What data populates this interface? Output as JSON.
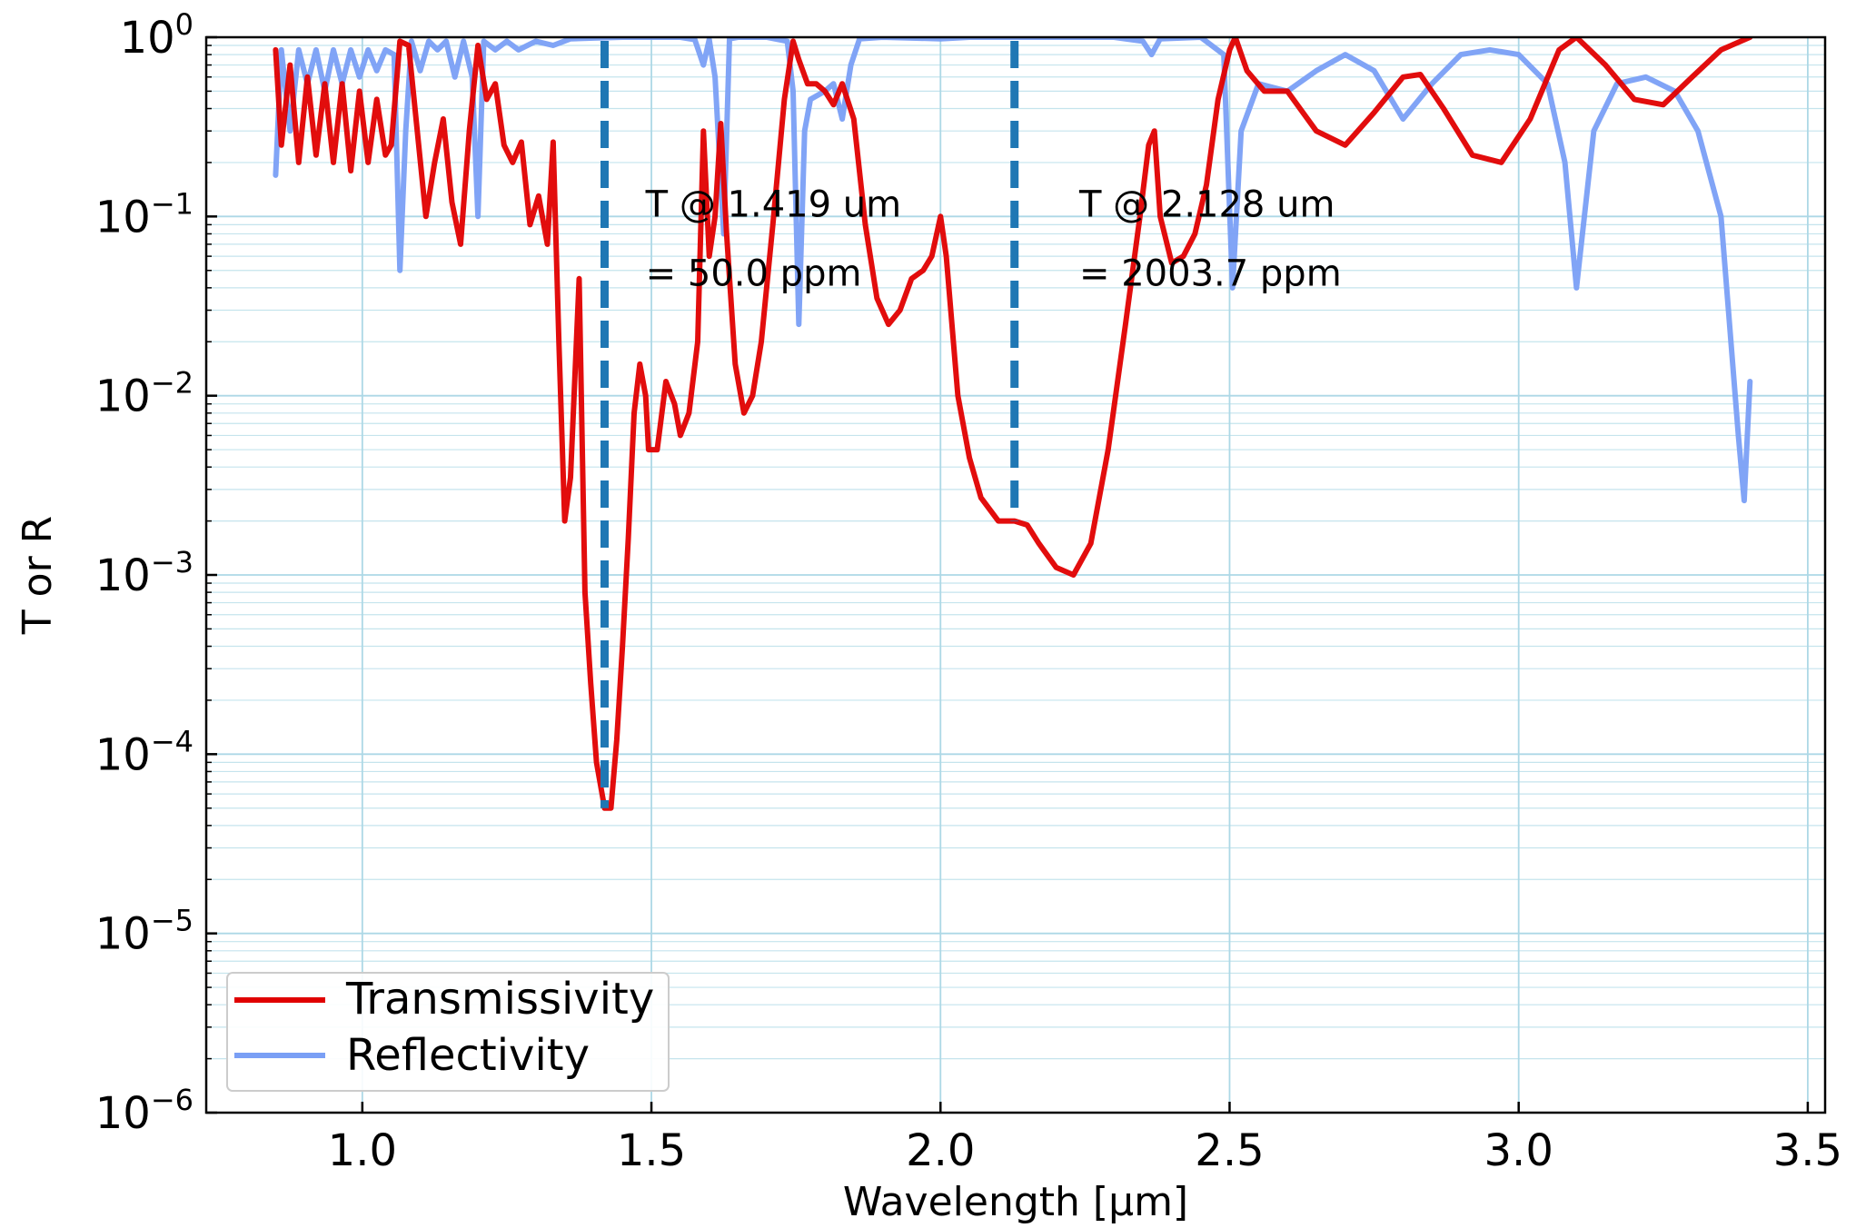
{
  "chart_data": {
    "type": "line",
    "title": "",
    "xlabel": "Wavelength [μm]",
    "ylabel": "T or R",
    "xlim": [
      0.73,
      3.53
    ],
    "ylim": [
      1e-06,
      1
    ],
    "yscale": "log",
    "xticks": [
      1.0,
      1.5,
      2.0,
      2.5,
      3.0,
      3.5
    ],
    "xtick_labels": [
      "1.0",
      "1.5",
      "2.0",
      "2.5",
      "3.0",
      "3.5"
    ],
    "yticks": [
      {
        "value": 1,
        "base": "10",
        "exp": "0"
      },
      {
        "value": 0.1,
        "base": "10",
        "exp": "−1"
      },
      {
        "value": 0.01,
        "base": "10",
        "exp": "−2"
      },
      {
        "value": 0.001,
        "base": "10",
        "exp": "−3"
      },
      {
        "value": 0.0001,
        "base": "10",
        "exp": "−4"
      },
      {
        "value": 1e-05,
        "base": "10",
        "exp": "−5"
      },
      {
        "value": 1e-06,
        "base": "10",
        "exp": "−6"
      }
    ],
    "grid": true,
    "legend_position": "lower-left",
    "series": [
      {
        "name": "Transmissivity",
        "color": "#e00000",
        "points": [
          [
            0.85,
            0.85
          ],
          [
            0.86,
            0.25
          ],
          [
            0.875,
            0.7
          ],
          [
            0.89,
            0.2
          ],
          [
            0.905,
            0.6
          ],
          [
            0.92,
            0.22
          ],
          [
            0.935,
            0.55
          ],
          [
            0.95,
            0.2
          ],
          [
            0.965,
            0.55
          ],
          [
            0.98,
            0.18
          ],
          [
            0.995,
            0.5
          ],
          [
            1.01,
            0.2
          ],
          [
            1.025,
            0.45
          ],
          [
            1.04,
            0.22
          ],
          [
            1.05,
            0.25
          ],
          [
            1.065,
            0.95
          ],
          [
            1.08,
            0.9
          ],
          [
            1.095,
            0.3
          ],
          [
            1.11,
            0.1
          ],
          [
            1.125,
            0.2
          ],
          [
            1.14,
            0.35
          ],
          [
            1.155,
            0.12
          ],
          [
            1.17,
            0.07
          ],
          [
            1.185,
            0.3
          ],
          [
            1.2,
            0.9
          ],
          [
            1.215,
            0.45
          ],
          [
            1.23,
            0.55
          ],
          [
            1.245,
            0.25
          ],
          [
            1.26,
            0.2
          ],
          [
            1.275,
            0.26
          ],
          [
            1.29,
            0.09
          ],
          [
            1.305,
            0.13
          ],
          [
            1.32,
            0.07
          ],
          [
            1.33,
            0.26
          ],
          [
            1.34,
            0.02
          ],
          [
            1.35,
            0.002
          ],
          [
            1.36,
            0.0035
          ],
          [
            1.375,
            0.045
          ],
          [
            1.385,
            0.0008
          ],
          [
            1.395,
            0.00025
          ],
          [
            1.405,
            9e-05
          ],
          [
            1.419,
            5e-05
          ],
          [
            1.43,
            5e-05
          ],
          [
            1.44,
            0.00012
          ],
          [
            1.45,
            0.0004
          ],
          [
            1.46,
            0.0016
          ],
          [
            1.47,
            0.008
          ],
          [
            1.48,
            0.015
          ],
          [
            1.49,
            0.01
          ],
          [
            1.495,
            0.005
          ],
          [
            1.51,
            0.005
          ],
          [
            1.525,
            0.012
          ],
          [
            1.54,
            0.009
          ],
          [
            1.55,
            0.006
          ],
          [
            1.565,
            0.008
          ],
          [
            1.58,
            0.02
          ],
          [
            1.59,
            0.3
          ],
          [
            1.6,
            0.06
          ],
          [
            1.61,
            0.1
          ],
          [
            1.62,
            0.33
          ],
          [
            1.63,
            0.08
          ],
          [
            1.645,
            0.015
          ],
          [
            1.66,
            0.008
          ],
          [
            1.675,
            0.01
          ],
          [
            1.69,
            0.02
          ],
          [
            1.71,
            0.09
          ],
          [
            1.73,
            0.45
          ],
          [
            1.745,
            0.95
          ],
          [
            1.755,
            0.75
          ],
          [
            1.77,
            0.55
          ],
          [
            1.785,
            0.55
          ],
          [
            1.8,
            0.5
          ],
          [
            1.815,
            0.42
          ],
          [
            1.83,
            0.55
          ],
          [
            1.85,
            0.35
          ],
          [
            1.87,
            0.09
          ],
          [
            1.89,
            0.035
          ],
          [
            1.91,
            0.025
          ],
          [
            1.93,
            0.03
          ],
          [
            1.95,
            0.045
          ],
          [
            1.97,
            0.05
          ],
          [
            1.985,
            0.06
          ],
          [
            2.0,
            0.1
          ],
          [
            2.01,
            0.06
          ],
          [
            2.03,
            0.01
          ],
          [
            2.05,
            0.0045
          ],
          [
            2.07,
            0.0027
          ],
          [
            2.1,
            0.002
          ],
          [
            2.128,
            0.002
          ],
          [
            2.15,
            0.0019
          ],
          [
            2.17,
            0.0015
          ],
          [
            2.2,
            0.0011
          ],
          [
            2.23,
            0.001
          ],
          [
            2.26,
            0.0015
          ],
          [
            2.29,
            0.005
          ],
          [
            2.32,
            0.025
          ],
          [
            2.345,
            0.1
          ],
          [
            2.36,
            0.25
          ],
          [
            2.37,
            0.3
          ],
          [
            2.38,
            0.1
          ],
          [
            2.4,
            0.055
          ],
          [
            2.42,
            0.06
          ],
          [
            2.44,
            0.08
          ],
          [
            2.46,
            0.15
          ],
          [
            2.48,
            0.45
          ],
          [
            2.5,
            0.85
          ],
          [
            2.51,
            1.0
          ],
          [
            2.53,
            0.65
          ],
          [
            2.56,
            0.5
          ],
          [
            2.6,
            0.5
          ],
          [
            2.65,
            0.3
          ],
          [
            2.7,
            0.25
          ],
          [
            2.75,
            0.38
          ],
          [
            2.8,
            0.6
          ],
          [
            2.83,
            0.62
          ],
          [
            2.87,
            0.4
          ],
          [
            2.92,
            0.22
          ],
          [
            2.97,
            0.2
          ],
          [
            3.02,
            0.35
          ],
          [
            3.07,
            0.85
          ],
          [
            3.1,
            1.0
          ],
          [
            3.15,
            0.7
          ],
          [
            3.2,
            0.45
          ],
          [
            3.25,
            0.42
          ],
          [
            3.3,
            0.6
          ],
          [
            3.35,
            0.85
          ],
          [
            3.4,
            1.0
          ]
        ]
      },
      {
        "name": "Reflectivity",
        "color": "#7a9ff5",
        "points": [
          [
            0.85,
            0.17
          ],
          [
            0.86,
            0.85
          ],
          [
            0.875,
            0.3
          ],
          [
            0.89,
            0.85
          ],
          [
            0.905,
            0.55
          ],
          [
            0.92,
            0.85
          ],
          [
            0.935,
            0.5
          ],
          [
            0.95,
            0.85
          ],
          [
            0.965,
            0.55
          ],
          [
            0.98,
            0.85
          ],
          [
            0.995,
            0.6
          ],
          [
            1.01,
            0.85
          ],
          [
            1.025,
            0.65
          ],
          [
            1.04,
            0.85
          ],
          [
            1.055,
            0.8
          ],
          [
            1.065,
            0.05
          ],
          [
            1.075,
            0.3
          ],
          [
            1.085,
            0.95
          ],
          [
            1.1,
            0.65
          ],
          [
            1.115,
            0.95
          ],
          [
            1.13,
            0.85
          ],
          [
            1.145,
            0.95
          ],
          [
            1.16,
            0.6
          ],
          [
            1.175,
            0.95
          ],
          [
            1.19,
            0.6
          ],
          [
            1.2,
            0.1
          ],
          [
            1.21,
            0.95
          ],
          [
            1.23,
            0.85
          ],
          [
            1.25,
            0.95
          ],
          [
            1.27,
            0.85
          ],
          [
            1.3,
            0.95
          ],
          [
            1.33,
            0.9
          ],
          [
            1.36,
            0.98
          ],
          [
            1.4,
            0.99
          ],
          [
            1.45,
            1.0
          ],
          [
            1.5,
            1.0
          ],
          [
            1.55,
            1.0
          ],
          [
            1.575,
            0.97
          ],
          [
            1.59,
            0.7
          ],
          [
            1.6,
            0.97
          ],
          [
            1.61,
            0.6
          ],
          [
            1.625,
            0.08
          ],
          [
            1.635,
            0.98
          ],
          [
            1.65,
            1.0
          ],
          [
            1.7,
            1.0
          ],
          [
            1.735,
            0.95
          ],
          [
            1.745,
            0.5
          ],
          [
            1.755,
            0.025
          ],
          [
            1.765,
            0.3
          ],
          [
            1.775,
            0.45
          ],
          [
            1.8,
            0.5
          ],
          [
            1.815,
            0.55
          ],
          [
            1.83,
            0.35
          ],
          [
            1.845,
            0.7
          ],
          [
            1.86,
            0.98
          ],
          [
            1.9,
            1.0
          ],
          [
            2.0,
            0.98
          ],
          [
            2.05,
            1.0
          ],
          [
            2.15,
            1.0
          ],
          [
            2.3,
            1.0
          ],
          [
            2.35,
            0.95
          ],
          [
            2.365,
            0.8
          ],
          [
            2.38,
            0.98
          ],
          [
            2.45,
            1.0
          ],
          [
            2.49,
            0.8
          ],
          [
            2.505,
            0.04
          ],
          [
            2.52,
            0.3
          ],
          [
            2.55,
            0.55
          ],
          [
            2.6,
            0.5
          ],
          [
            2.65,
            0.65
          ],
          [
            2.7,
            0.8
          ],
          [
            2.75,
            0.65
          ],
          [
            2.8,
            0.35
          ],
          [
            2.85,
            0.55
          ],
          [
            2.9,
            0.8
          ],
          [
            2.95,
            0.85
          ],
          [
            3.0,
            0.8
          ],
          [
            3.05,
            0.55
          ],
          [
            3.08,
            0.2
          ],
          [
            3.1,
            0.04
          ],
          [
            3.13,
            0.3
          ],
          [
            3.17,
            0.55
          ],
          [
            3.22,
            0.6
          ],
          [
            3.27,
            0.5
          ],
          [
            3.31,
            0.3
          ],
          [
            3.35,
            0.1
          ],
          [
            3.38,
            0.006
          ],
          [
            3.39,
            0.0026
          ],
          [
            3.4,
            0.012
          ]
        ]
      }
    ],
    "markers": [
      {
        "x": 1.419,
        "color": "#1f77b4",
        "y_value": 5e-05
      },
      {
        "x": 2.128,
        "color": "#1f77b4",
        "y_value": 0.002
      }
    ],
    "annotations": [
      {
        "line1": "T @ 1.419 um",
        "line2": "= 50.0 ppm",
        "x": 1.49,
        "y1": 0.1,
        "y2": 0.05
      },
      {
        "line1": "T @ 2.128 um",
        "line2": "= 2003.7 ppm",
        "x": 2.24,
        "y1": 0.1,
        "y2": 0.05
      }
    ]
  }
}
